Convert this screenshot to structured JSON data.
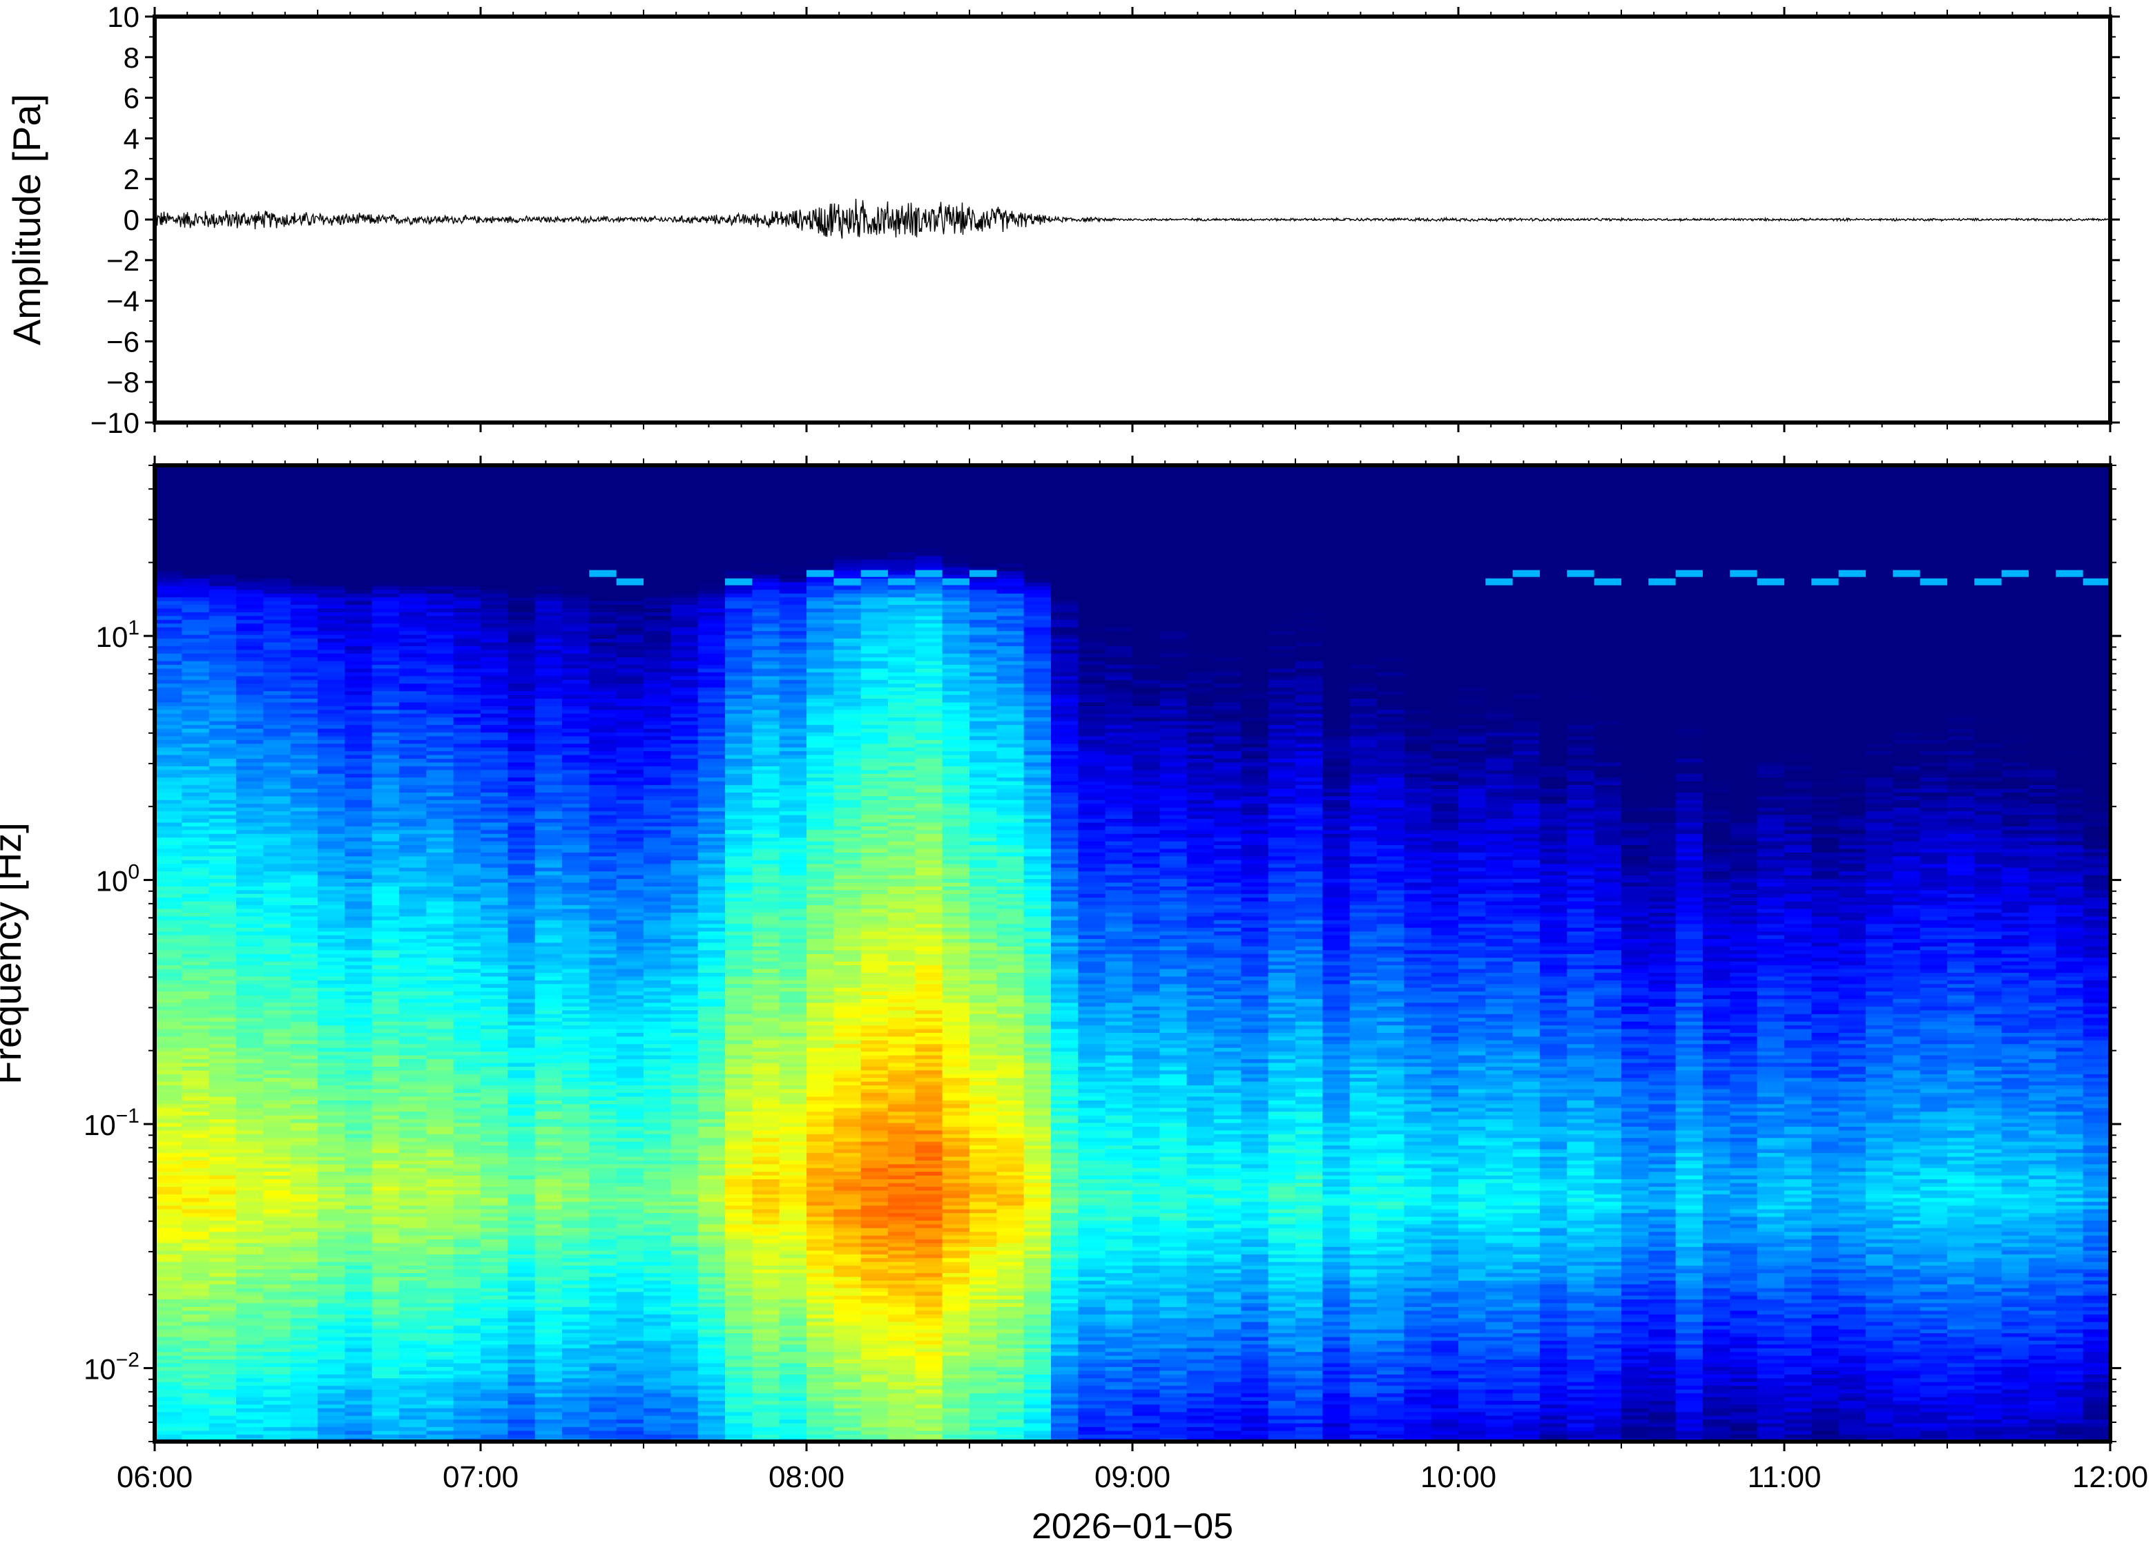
{
  "chart_data": [
    {
      "type": "line",
      "title": "",
      "ylabel": "Amplitude [Pa]",
      "ylim": [
        -10,
        10
      ],
      "yticks": [
        10,
        8,
        6,
        4,
        2,
        0,
        -2,
        -4,
        -6,
        -8,
        -10
      ],
      "ytick_labels": [
        "10",
        "8",
        "6",
        "4",
        "2",
        "0",
        "−2",
        "−4",
        "−6",
        "−8",
        "−10"
      ],
      "xlim": [
        "06:00",
        "12:00"
      ],
      "series": [
        {
          "x": [
            "06:00",
            "06:15",
            "06:30",
            "06:45",
            "07:00",
            "07:15",
            "07:30",
            "07:45",
            "08:00",
            "08:05",
            "08:15",
            "08:25",
            "08:35",
            "08:45",
            "09:00",
            "09:30",
            "10:00",
            "10:30",
            "11:00",
            "11:30",
            "12:00"
          ],
          "envelope": [
            0.35,
            0.4,
            0.3,
            0.2,
            0.15,
            0.12,
            0.12,
            0.2,
            0.45,
            0.9,
            0.75,
            0.7,
            0.55,
            0.12,
            0.05,
            0.05,
            0.07,
            0.05,
            0.05,
            0.05,
            0.05
          ],
          "color": "#000000"
        }
      ]
    },
    {
      "type": "heatmap",
      "ylabel": "Frequency [Hz]",
      "xlabel": "2026−01−05",
      "y_scale": "log",
      "ylim": [
        0.005,
        50
      ],
      "yticks": [
        0.01,
        0.1,
        1,
        10
      ],
      "ytick_labels": [
        {
          "base": "10",
          "exp": "−2"
        },
        {
          "base": "10",
          "exp": "−1"
        },
        {
          "base": "10",
          "exp": "0"
        },
        {
          "base": "10",
          "exp": "1"
        }
      ],
      "xticks": [
        "06:00",
        "07:00",
        "08:00",
        "09:00",
        "10:00",
        "11:00",
        "12:00"
      ],
      "colormap": "jet",
      "time_intervals": 72,
      "relative_power": {
        "times": [
          "06:00",
          "06:30",
          "07:00",
          "07:30",
          "07:50",
          "08:15",
          "08:35",
          "08:50",
          "09:30",
          "10:00",
          "11:00",
          "12:00"
        ],
        "values": [
          0.62,
          0.58,
          0.52,
          0.5,
          0.62,
          0.78,
          0.72,
          0.45,
          0.4,
          0.34,
          0.33,
          0.33
        ]
      },
      "lines_near_hz": 17
    }
  ],
  "colors": {
    "frame": "#000000",
    "background": "#ffffff"
  }
}
